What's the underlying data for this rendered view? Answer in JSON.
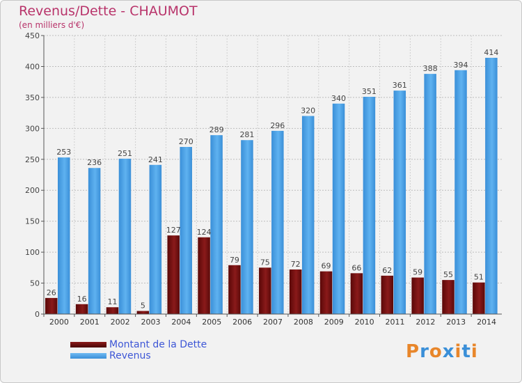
{
  "chart_data": {
    "type": "bar",
    "title": "Revenus/Dette - CHAUMOT",
    "subtitle": "(en milliers d'€)",
    "categories": [
      "2000",
      "2001",
      "2002",
      "2003",
      "2004",
      "2005",
      "2006",
      "2007",
      "2008",
      "2009",
      "2010",
      "2011",
      "2012",
      "2013",
      "2014"
    ],
    "series": [
      {
        "name": "Montant de la Dette",
        "color": "#6e0e0e",
        "values": [
          26,
          16,
          11,
          5,
          127,
          124,
          79,
          75,
          72,
          69,
          66,
          62,
          59,
          55,
          51
        ]
      },
      {
        "name": "Revenus",
        "color": "#4aa0e6",
        "values": [
          253,
          236,
          251,
          241,
          270,
          289,
          281,
          296,
          320,
          340,
          351,
          361,
          388,
          394,
          414
        ]
      }
    ],
    "ylim": [
      0,
      450
    ],
    "yticks": [
      0,
      50,
      100,
      150,
      200,
      250,
      300,
      350,
      400,
      450
    ],
    "grid": true,
    "legend": "bottom-left"
  },
  "logo": {
    "text": "Proxiti",
    "letter_colors": [
      "#e8862a",
      "#3a8fd8",
      "#e8862a",
      "#3a8fd8",
      "#e8862a",
      "#3a8fd8",
      "#e8862a"
    ]
  }
}
